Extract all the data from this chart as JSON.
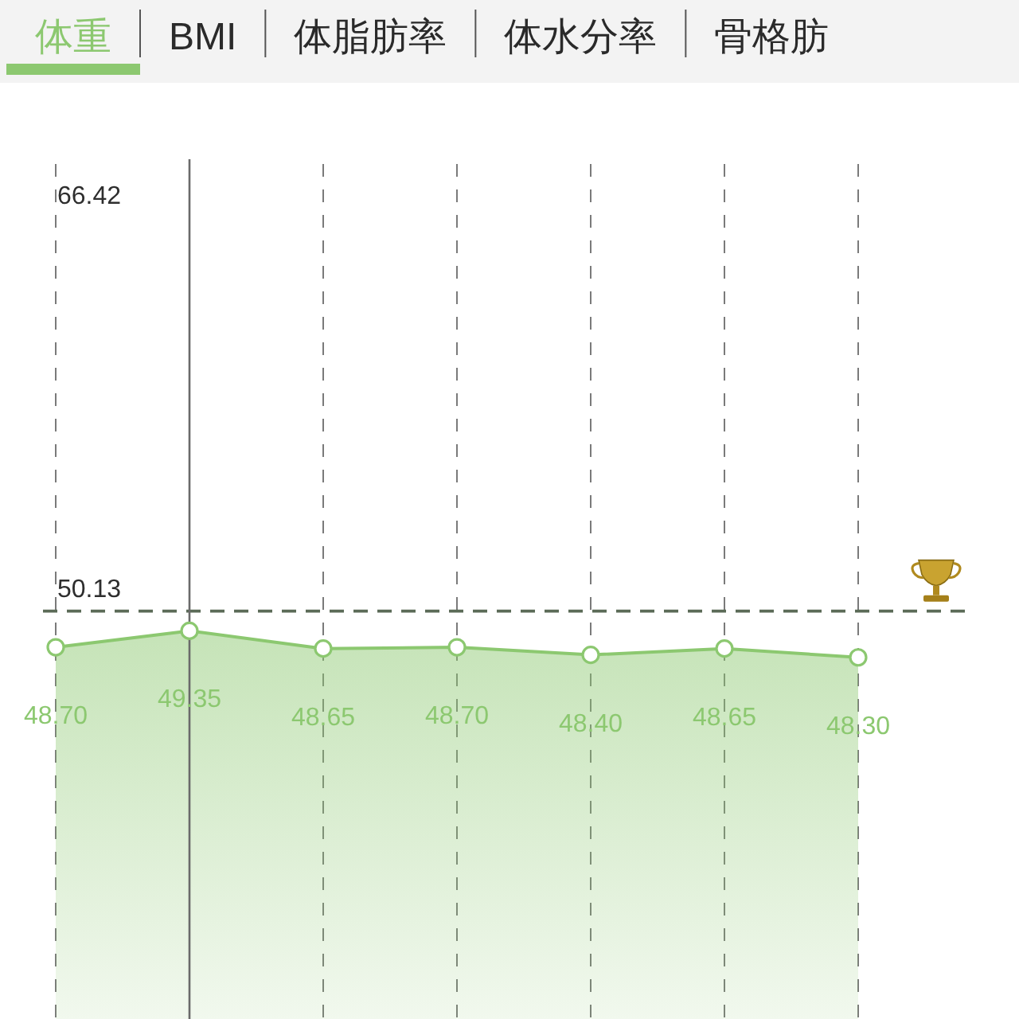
{
  "chart_data": {
    "type": "area",
    "title": "体重",
    "categories": [
      null,
      null,
      null,
      null,
      null,
      null,
      null
    ],
    "values": [
      48.7,
      49.35,
      48.65,
      48.7,
      48.4,
      48.65,
      48.3
    ],
    "value_labels": [
      "48.70",
      "49.35",
      "48.65",
      "48.70",
      "48.40",
      "48.65",
      "48.30"
    ],
    "color": "#8cc870",
    "ylim": [
      34,
      68
    ],
    "grid": "x",
    "marker": "circle",
    "line_style": "solid",
    "ref_lines": [
      {
        "axis": "y",
        "value": 50.13,
        "label": "50.13",
        "color": "#5b6b57",
        "line_style": "dashed"
      }
    ],
    "annotations": [
      "BMI",
      "体脂肪率",
      "体水分率",
      "骨格肪",
      "66.42"
    ]
  }
}
